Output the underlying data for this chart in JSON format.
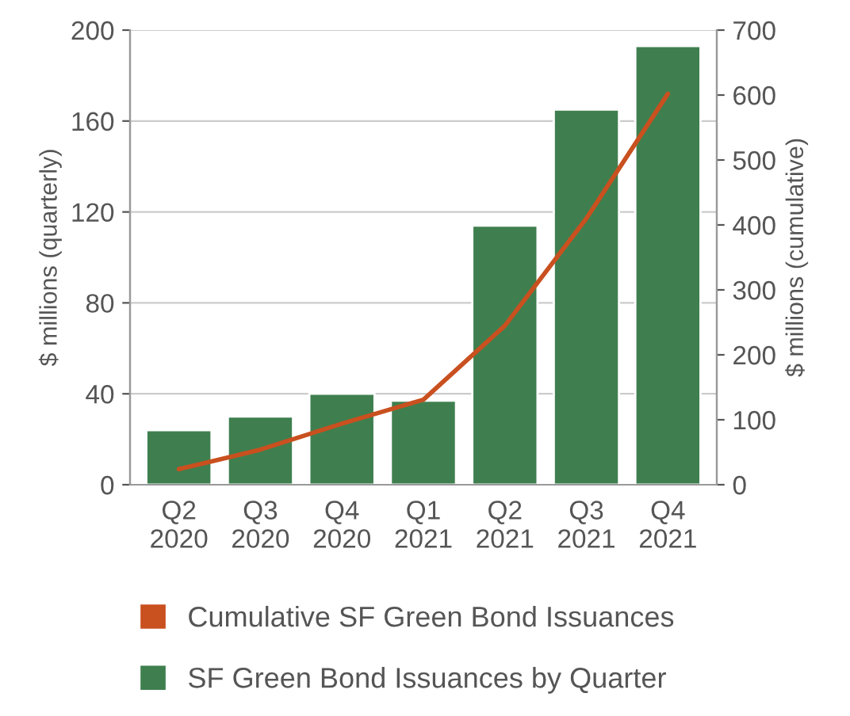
{
  "chart_data": {
    "type": "bar",
    "categories": [
      "Q2\n2020",
      "Q3\n2020",
      "Q4\n2020",
      "Q1\n2021",
      "Q2\n2021",
      "Q3\n2021",
      "Q4\n2021"
    ],
    "ylabel": "$ millions (quarterly)",
    "y2label": "$ millions (cumulative)",
    "series": [
      {
        "name": "Cumulative SF Green Bond Issuances",
        "type": "line",
        "axis": "y2",
        "color": "#c9501f",
        "values": [
          24,
          54,
          94,
          131,
          245,
          410,
          602
        ]
      },
      {
        "name": "SF Green Bond Issuances by Quarter",
        "color": "#3f7f4f",
        "values": [
          24,
          30,
          40,
          37,
          114,
          165,
          193
        ]
      }
    ],
    "ylim": [
      0,
      200
    ],
    "yticks": [
      0,
      40,
      80,
      120,
      160,
      200
    ],
    "y2lim": [
      0,
      700
    ],
    "y2ticks": [
      0,
      100,
      200,
      300,
      400,
      500,
      600,
      700
    ],
    "grid": "y",
    "legend": "bottom"
  }
}
